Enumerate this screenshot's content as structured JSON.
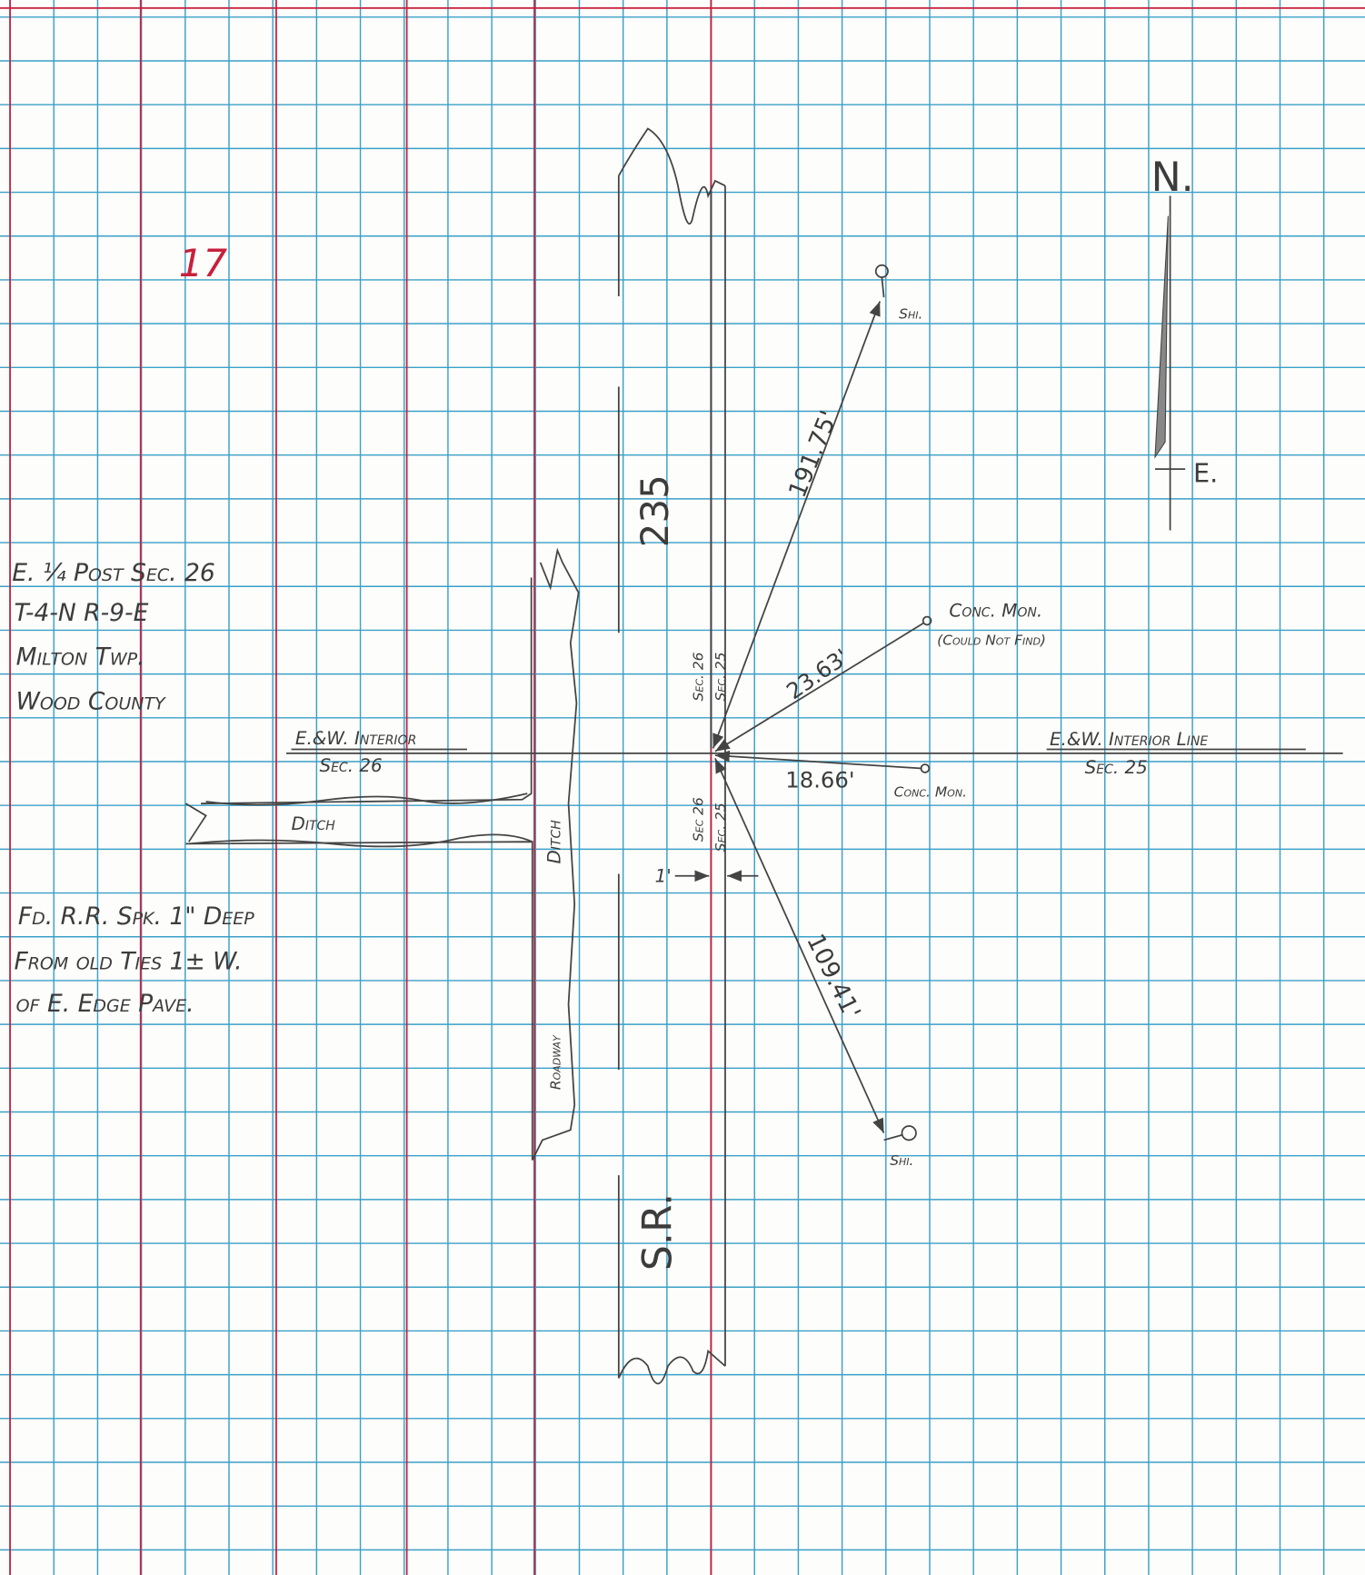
{
  "page_number": "17",
  "north_arrow": {
    "north": "N.",
    "east": "E."
  },
  "title_block": [
    "E. ¼ Post Sec. 26",
    "T-4-N    R-9-E",
    "Milton Twp.",
    "Wood County"
  ],
  "note": [
    "Fd. R.R. Spk. 1\" Deep",
    "From old Ties 1± W.",
    "of E. Edge Pave."
  ],
  "west_line": {
    "label": "E.&W. Interior",
    "section": "Sec. 26"
  },
  "east_line": {
    "label": "E.&W. Interior Line",
    "section": "Sec. 25"
  },
  "ditch_horizontal": "Ditch",
  "ditch_vertical": "Ditch",
  "roadway": "Roadway",
  "road_length": "235",
  "road_name": "S.R.",
  "section_marks": {
    "upper_west": "Sec. 26",
    "upper_east": "Sec. 25",
    "lower_west": "Sec 26",
    "lower_east": "Sec. 25"
  },
  "offset": "1'",
  "ties": [
    {
      "distance": "191.75'",
      "object": "Shi."
    },
    {
      "distance": "23.63'",
      "object": "Conc. Mon.",
      "remark": "(Could Not Find)"
    },
    {
      "distance": "18.66'",
      "object": "Conc. Mon."
    },
    {
      "distance": "109.41'",
      "object": "Shi."
    }
  ]
}
